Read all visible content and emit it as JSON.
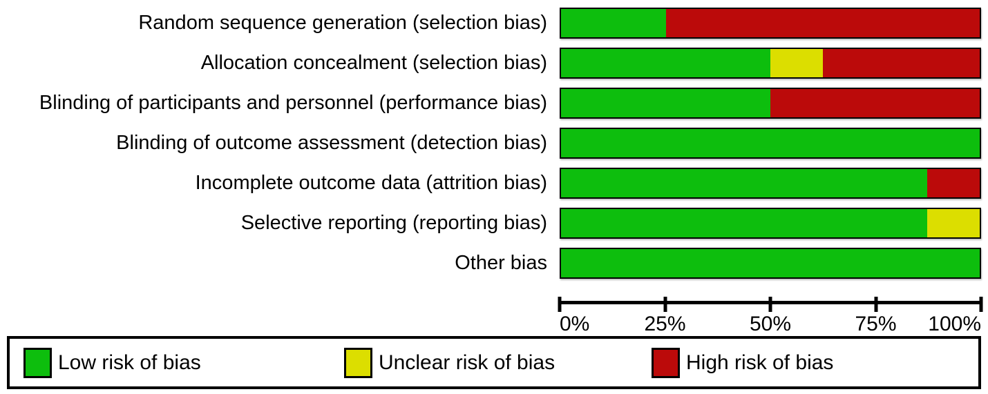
{
  "chart_data": {
    "type": "bar",
    "orientation": "horizontal",
    "stacked": true,
    "title": "",
    "xlabel": "",
    "ylabel": "",
    "categories": [
      "Random sequence generation (selection bias)",
      "Allocation concealment (selection bias)",
      "Blinding of participants and personnel (performance bias)",
      "Blinding of outcome assessment (detection bias)",
      "Incomplete outcome data (attrition bias)",
      "Selective reporting (reporting bias)",
      "Other bias"
    ],
    "series": [
      {
        "name": "Low risk of bias",
        "color": "#0dbe0d",
        "values": [
          25,
          50,
          50,
          100,
          87.5,
          87.5,
          100
        ]
      },
      {
        "name": "Unclear risk of bias",
        "color": "#dcde00",
        "values": [
          0,
          12.5,
          0,
          0,
          0,
          12.5,
          0
        ]
      },
      {
        "name": "High risk of bias",
        "color": "#bb0a0a",
        "values": [
          75,
          37.5,
          50,
          0,
          12.5,
          0,
          0
        ]
      }
    ],
    "x_axis": {
      "range": [
        0,
        100
      ],
      "unit": "%",
      "tick_positions": [
        0,
        25,
        50,
        75,
        100
      ],
      "tick_labels": [
        "0%",
        "25%",
        "50%",
        "75%",
        "100%"
      ]
    },
    "grid": false,
    "legend_position": "bottom"
  },
  "legend": {
    "items": [
      {
        "label": "Low risk of bias",
        "color": "#0dbe0d"
      },
      {
        "label": "Unclear risk of bias",
        "color": "#dcde00"
      },
      {
        "label": "High risk of bias",
        "color": "#bb0a0a"
      }
    ]
  }
}
